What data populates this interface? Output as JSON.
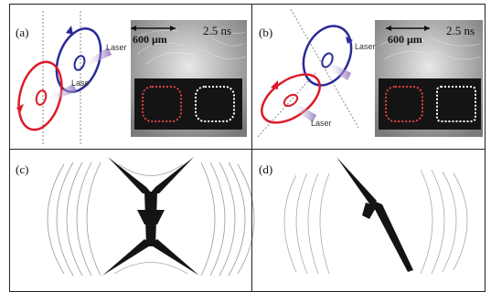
{
  "panels": {
    "a": {
      "label": "(a)",
      "scale_label": "600 μm",
      "time_label": "2.5 ns",
      "laser_labels": [
        "Laser",
        "Lase"
      ]
    },
    "b": {
      "label": "(b)",
      "scale_label": "600 μm",
      "time_label": "2.5 ns",
      "laser_labels": [
        "Laser",
        "Laser"
      ]
    },
    "c": {
      "label": "(c)"
    },
    "d": {
      "label": "(d)"
    }
  },
  "colors": {
    "beam_red": "#dd1a2a",
    "beam_blue": "#2a2a9a",
    "laser_purple": "#8a6ab8",
    "target_black": "#141414"
  }
}
